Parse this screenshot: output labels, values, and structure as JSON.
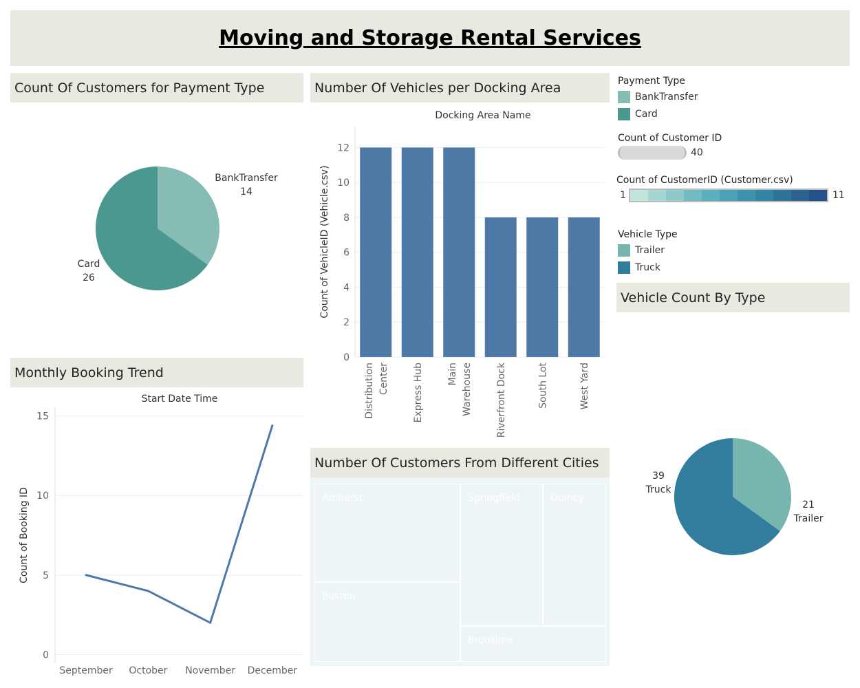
{
  "dashboard": {
    "title": "Moving and Storage Rental Services"
  },
  "panels": {
    "payment": "Count Of Customers for Payment Type",
    "docking": "Number Of Vehicles per Docking Area",
    "trend": "Monthly Booking Trend",
    "cities": "Number Of Customers From Different Cities",
    "vehicle_type": "Vehicle Count By Type"
  },
  "legends": {
    "payment": {
      "title": "Payment Type",
      "items": [
        {
          "label": "BankTransfer",
          "color": "#87bcb4"
        },
        {
          "label": "Card",
          "color": "#4a9890"
        }
      ]
    },
    "size": {
      "title": "Count of Customer ID",
      "max": "40"
    },
    "gradient": {
      "title": "Count of CustomerID (Customer.csv)",
      "min": "1",
      "max": "11",
      "colors": [
        "#c1e4dd",
        "#a5d6d0",
        "#8ccbca",
        "#71bdc3",
        "#5cb0bd",
        "#4aa3b6",
        "#3c93ac",
        "#3483a2",
        "#2f7399",
        "#2b628f",
        "#26528a"
      ]
    },
    "vehicle": {
      "title": "Vehicle Type",
      "items": [
        {
          "label": "Trailer",
          "color": "#77b5af"
        },
        {
          "label": "Truck",
          "color": "#327c9e"
        }
      ]
    }
  },
  "chart_data": [
    {
      "id": "payment",
      "type": "pie",
      "slices": [
        {
          "label": "BankTransfer",
          "value": 14,
          "color": "#87bcb4"
        },
        {
          "label": "Card",
          "value": 26,
          "color": "#4a9890"
        }
      ]
    },
    {
      "id": "docking",
      "type": "bar",
      "title": "Docking Area Name",
      "ylabel": "Count of VehicleID (Vehicle.csv)",
      "categories": [
        "Distribution Center",
        "Express Hub",
        "Main Warehouse",
        "Riverfront Dock",
        "South Lot",
        "West Yard"
      ],
      "category_lines": [
        [
          "Distribution",
          "Center"
        ],
        [
          "Express Hub"
        ],
        [
          "Main",
          "Warehouse"
        ],
        [
          "Riverfront Dock"
        ],
        [
          "South Lot"
        ],
        [
          "West Yard"
        ]
      ],
      "values": [
        12,
        12,
        12,
        8,
        8,
        8
      ],
      "ylim": [
        0,
        13.2
      ],
      "yticks": [
        0,
        2,
        4,
        6,
        8,
        10,
        12
      ],
      "color": "#4e79a7",
      "grid": true
    },
    {
      "id": "trend",
      "type": "line",
      "title": "Start Date Time",
      "ylabel": "Count of Booking ID",
      "categories": [
        "September",
        "October",
        "November",
        "December"
      ],
      "values": [
        5,
        4,
        2,
        14.4
      ],
      "ylim": [
        -0.5,
        15.5
      ],
      "yticks": [
        0,
        5,
        10,
        15
      ],
      "color": "#4e79a7",
      "grid": true
    },
    {
      "id": "cities",
      "type": "treemap",
      "cells": [
        {
          "label": "Amherst",
          "value": 11,
          "color": "#2e5a87"
        },
        {
          "label": "Boston",
          "value": 9,
          "color": "#32749c"
        },
        {
          "label": "Springfield",
          "value": 8,
          "color": "#3480a4"
        },
        {
          "label": "Quincy",
          "value": 6,
          "color": "#3c94b3"
        },
        {
          "label": "Brookline",
          "value": 6,
          "color": "#76bcc4"
        }
      ]
    },
    {
      "id": "vehicle_type",
      "type": "pie",
      "slices": [
        {
          "label": "Trailer",
          "value": 21,
          "color": "#77b5af"
        },
        {
          "label": "Truck",
          "value": 39,
          "color": "#327c9e"
        }
      ]
    }
  ]
}
